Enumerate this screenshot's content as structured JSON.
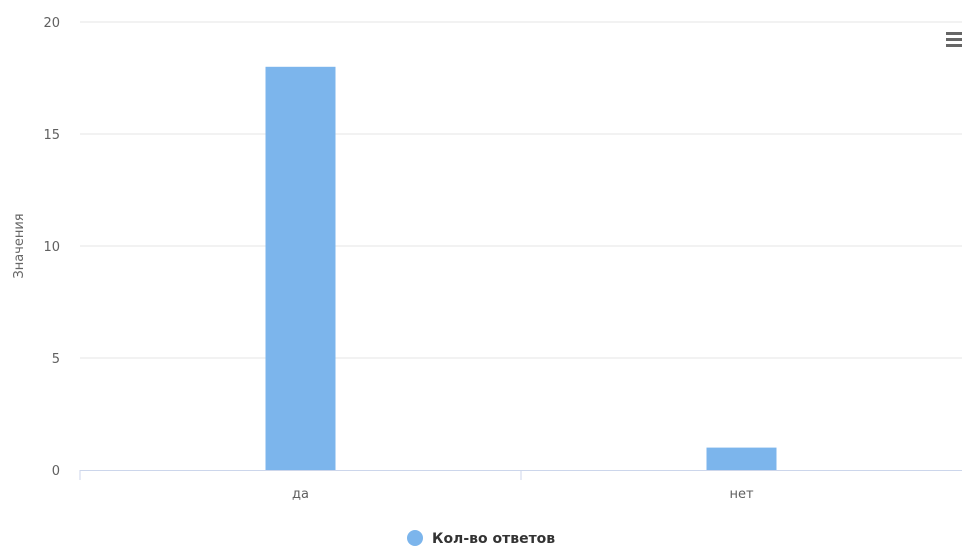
{
  "chart_data": {
    "type": "bar",
    "categories": [
      "да",
      "нет"
    ],
    "series": [
      {
        "name": "Кол-во ответов",
        "values": [
          18,
          1
        ],
        "color": "#7cb5ec"
      }
    ],
    "title": "",
    "xlabel": "",
    "ylabel": "Значения",
    "ylim": [
      0,
      20
    ],
    "yticks": [
      0,
      5,
      10,
      15,
      20
    ],
    "grid": true,
    "legend": "bottom-center"
  },
  "colors": {
    "grid": "#e6e6e6",
    "axis": "#ccd6eb",
    "bar": "#7cb5ec"
  },
  "toolbar": {
    "menu_icon": "hamburger-menu-icon"
  }
}
